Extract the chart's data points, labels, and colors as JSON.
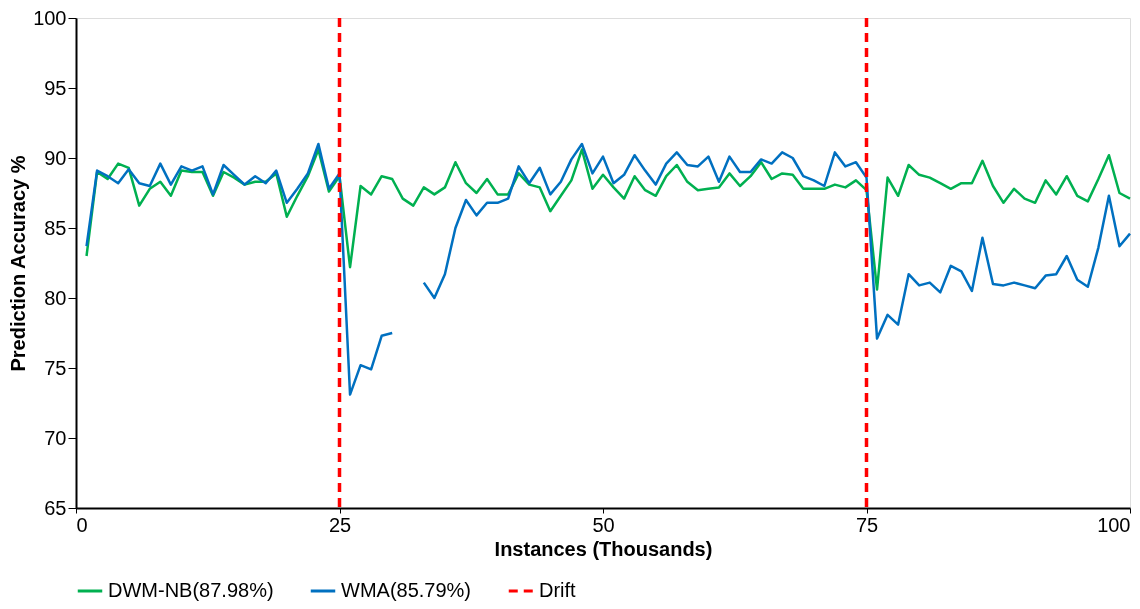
{
  "chart_data": {
    "type": "line",
    "xlabel": "Instances (Thousands)",
    "ylabel": "Prediction Accuracy %",
    "x": [
      1,
      2,
      3,
      4,
      5,
      6,
      7,
      8,
      9,
      10,
      11,
      12,
      13,
      14,
      15,
      16,
      17,
      18,
      19,
      20,
      21,
      22,
      23,
      24,
      25,
      26,
      27,
      28,
      29,
      30,
      31,
      32,
      33,
      34,
      35,
      36,
      37,
      38,
      39,
      40,
      41,
      42,
      43,
      44,
      45,
      46,
      47,
      48,
      49,
      50,
      51,
      52,
      53,
      54,
      55,
      56,
      57,
      58,
      59,
      60,
      61,
      62,
      63,
      64,
      65,
      66,
      67,
      68,
      69,
      70,
      71,
      72,
      73,
      74,
      75,
      76,
      77,
      78,
      79,
      80,
      81,
      82,
      83,
      84,
      85,
      86,
      87,
      88,
      89,
      90,
      91,
      92,
      93,
      94,
      95,
      96,
      97,
      98,
      99,
      100
    ],
    "series": [
      {
        "name": "DWM-NB(87.98%)",
        "color": "#00b050",
        "values": [
          83.0,
          89.0,
          88.5,
          89.6,
          89.3,
          86.6,
          87.8,
          88.3,
          87.3,
          89.1,
          89.0,
          89.0,
          87.3,
          89.0,
          88.6,
          88.1,
          88.3,
          88.3,
          88.9,
          85.8,
          87.3,
          88.7,
          90.6,
          87.6,
          88.7,
          82.2,
          88.0,
          87.4,
          88.7,
          88.5,
          87.1,
          86.6,
          87.9,
          87.4,
          87.9,
          89.7,
          88.2,
          87.5,
          88.5,
          87.4,
          87.4,
          88.9,
          88.1,
          87.9,
          86.2,
          87.3,
          88.4,
          90.6,
          87.8,
          88.8,
          87.9,
          87.1,
          88.7,
          87.7,
          87.3,
          88.7,
          89.5,
          88.3,
          87.7,
          87.8,
          87.9,
          88.9,
          88.0,
          88.7,
          89.7,
          88.5,
          88.9,
          88.8,
          87.8,
          87.8,
          87.8,
          88.1,
          87.9,
          88.4,
          87.7,
          80.6,
          88.6,
          87.3,
          89.5,
          88.8,
          88.6,
          88.2,
          87.8,
          88.2,
          88.2,
          89.8,
          88.0,
          86.8,
          87.8,
          87.1,
          86.8,
          88.4,
          87.4,
          88.7,
          87.3,
          86.9,
          88.5,
          90.2,
          87.5,
          87.1
        ]
      },
      {
        "name": "WMA(85.79%)",
        "color": "#0070c0",
        "values": [
          83.7,
          89.1,
          88.7,
          88.2,
          89.2,
          88.2,
          88.0,
          89.6,
          88.1,
          89.4,
          89.1,
          89.4,
          87.4,
          89.5,
          88.8,
          88.1,
          88.7,
          88.2,
          89.1,
          86.8,
          87.8,
          88.9,
          91.0,
          87.8,
          88.9,
          73.1,
          75.2,
          74.9,
          77.3,
          77.5,
          null,
          null,
          81.1,
          80.0,
          81.7,
          85.0,
          87.0,
          85.9,
          86.8,
          86.8,
          87.1,
          89.4,
          88.2,
          89.3,
          87.4,
          88.3,
          89.9,
          91.0,
          88.9,
          90.1,
          88.2,
          88.8,
          90.2,
          89.1,
          88.1,
          89.6,
          90.4,
          89.5,
          89.4,
          90.1,
          88.3,
          90.1,
          89.0,
          89.0,
          89.9,
          89.6,
          90.4,
          90.0,
          88.7,
          88.4,
          88.0,
          90.4,
          89.4,
          89.7,
          88.6,
          77.1,
          78.8,
          78.1,
          81.7,
          80.9,
          81.1,
          80.4,
          82.3,
          81.9,
          80.5,
          84.3,
          81.0,
          80.9,
          81.1,
          80.9,
          80.7,
          81.6,
          81.7,
          83.0,
          81.3,
          80.8,
          83.6,
          87.3,
          83.7,
          84.6
        ]
      }
    ],
    "ref_lines": [
      {
        "axis": "x",
        "value": 25,
        "label": "Drift",
        "color": "#ff0000",
        "line_style": "dashed"
      },
      {
        "axis": "x",
        "value": 75,
        "color": "#ff0000",
        "line_style": "dashed"
      }
    ],
    "xlim": [
      0,
      100
    ],
    "xticks": [
      0,
      25,
      50,
      75,
      100
    ],
    "ylim": [
      65,
      100
    ],
    "yticks": [
      65,
      70,
      75,
      80,
      85,
      90,
      95,
      100
    ],
    "grid": false,
    "legend": "bottom",
    "line_style": "solid",
    "marker": "none"
  }
}
